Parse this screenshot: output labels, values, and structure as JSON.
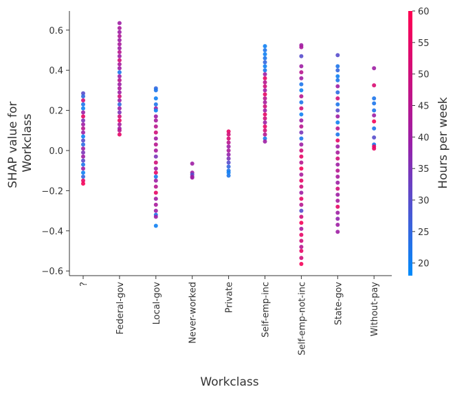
{
  "chart_data": {
    "type": "scatter",
    "xlabel": "Workclass",
    "ylabel": "SHAP value for\nWorkclass",
    "ylabel_lines": [
      "SHAP value for",
      "Workclass"
    ],
    "ylim": [
      -0.62,
      0.69
    ],
    "yticks": [
      -0.6,
      -0.4,
      -0.2,
      0.0,
      0.2,
      0.4,
      0.6
    ],
    "ytick_labels": [
      "−0.6",
      "−0.4",
      "−0.2",
      "0.0",
      "0.2",
      "0.4",
      "0.6"
    ],
    "grid": false,
    "categories": [
      "?",
      "Federal-gov",
      "Local-gov",
      "Never-worked",
      "Private",
      "Self-emp-inc",
      "Self-emp-not-inc",
      "State-gov",
      "Without-pay"
    ],
    "color_feature": {
      "label": "Hours per week",
      "range": [
        18,
        60
      ],
      "ticks": [
        20,
        25,
        30,
        35,
        40,
        45,
        50,
        55,
        60
      ],
      "colormap": [
        "#008bfb",
        "#9a1fa8",
        "#ff0051"
      ]
    },
    "points": {
      "?": [
        [
          0.285,
          30
        ],
        [
          0.27,
          25
        ],
        [
          0.25,
          50
        ],
        [
          0.23,
          22
        ],
        [
          0.21,
          20
        ],
        [
          0.19,
          40
        ],
        [
          0.17,
          55
        ],
        [
          0.15,
          35
        ],
        [
          0.13,
          40
        ],
        [
          0.11,
          45
        ],
        [
          0.09,
          40
        ],
        [
          0.07,
          20
        ],
        [
          0.05,
          30
        ],
        [
          0.03,
          24
        ],
        [
          0.01,
          40
        ],
        [
          -0.01,
          35
        ],
        [
          -0.03,
          40
        ],
        [
          -0.05,
          30
        ],
        [
          -0.07,
          22
        ],
        [
          -0.09,
          40
        ],
        [
          -0.11,
          20
        ],
        [
          -0.13,
          25
        ],
        [
          -0.15,
          55
        ],
        [
          -0.165,
          58
        ]
      ],
      "Federal-gov": [
        [
          0.635,
          40
        ],
        [
          0.61,
          42
        ],
        [
          0.59,
          40
        ],
        [
          0.57,
          43
        ],
        [
          0.55,
          40
        ],
        [
          0.53,
          42
        ],
        [
          0.51,
          40
        ],
        [
          0.49,
          45
        ],
        [
          0.47,
          40
        ],
        [
          0.45,
          50
        ],
        [
          0.43,
          42
        ],
        [
          0.41,
          40
        ],
        [
          0.39,
          22
        ],
        [
          0.37,
          40
        ],
        [
          0.35,
          45
        ],
        [
          0.33,
          40
        ],
        [
          0.31,
          42
        ],
        [
          0.29,
          40
        ],
        [
          0.27,
          50
        ],
        [
          0.25,
          40
        ],
        [
          0.23,
          25
        ],
        [
          0.21,
          40
        ],
        [
          0.19,
          35
        ],
        [
          0.17,
          50
        ],
        [
          0.15,
          55
        ],
        [
          0.13,
          42
        ],
        [
          0.11,
          40
        ],
        [
          0.1,
          45
        ],
        [
          0.08,
          55
        ]
      ],
      "Local-gov": [
        [
          0.31,
          25
        ],
        [
          0.3,
          22
        ],
        [
          0.26,
          20
        ],
        [
          0.23,
          22
        ],
        [
          0.21,
          40
        ],
        [
          0.2,
          20
        ],
        [
          0.17,
          40
        ],
        [
          0.15,
          42
        ],
        [
          0.12,
          45
        ],
        [
          0.09,
          50
        ],
        [
          0.06,
          40
        ],
        [
          0.03,
          45
        ],
        [
          0.0,
          42
        ],
        [
          -0.03,
          35
        ],
        [
          -0.06,
          50
        ],
        [
          -0.09,
          40
        ],
        [
          -0.11,
          55
        ],
        [
          -0.13,
          22
        ],
        [
          -0.15,
          40
        ],
        [
          -0.18,
          45
        ],
        [
          -0.21,
          55
        ],
        [
          -0.24,
          40
        ],
        [
          -0.27,
          42
        ],
        [
          -0.3,
          40
        ],
        [
          -0.32,
          22
        ],
        [
          -0.33,
          40
        ],
        [
          -0.375,
          20
        ]
      ],
      "Never-worked": [
        [
          -0.065,
          40
        ],
        [
          -0.11,
          40
        ],
        [
          -0.12,
          30
        ],
        [
          -0.13,
          38
        ],
        [
          -0.135,
          40
        ]
      ],
      "Private": [
        [
          0.095,
          55
        ],
        [
          0.08,
          50
        ],
        [
          0.06,
          52
        ],
        [
          0.04,
          45
        ],
        [
          0.02,
          40
        ],
        [
          0.0,
          42
        ],
        [
          -0.02,
          38
        ],
        [
          -0.04,
          35
        ],
        [
          -0.06,
          30
        ],
        [
          -0.08,
          25
        ],
        [
          -0.1,
          22
        ],
        [
          -0.11,
          20
        ],
        [
          -0.125,
          22
        ]
      ],
      "Self-emp-inc": [
        [
          0.52,
          20
        ],
        [
          0.5,
          22
        ],
        [
          0.48,
          20
        ],
        [
          0.46,
          22
        ],
        [
          0.44,
          25
        ],
        [
          0.42,
          20
        ],
        [
          0.4,
          22
        ],
        [
          0.38,
          40
        ],
        [
          0.36,
          55
        ],
        [
          0.34,
          45
        ],
        [
          0.32,
          50
        ],
        [
          0.3,
          40
        ],
        [
          0.28,
          55
        ],
        [
          0.26,
          45
        ],
        [
          0.24,
          42
        ],
        [
          0.22,
          50
        ],
        [
          0.2,
          40
        ],
        [
          0.18,
          55
        ],
        [
          0.16,
          50
        ],
        [
          0.14,
          40
        ],
        [
          0.12,
          55
        ],
        [
          0.1,
          50
        ],
        [
          0.08,
          45
        ],
        [
          0.06,
          22
        ],
        [
          0.045,
          40
        ]
      ],
      "Self-emp-not-inc": [
        [
          0.525,
          40
        ],
        [
          0.515,
          42
        ],
        [
          0.47,
          30
        ],
        [
          0.42,
          40
        ],
        [
          0.39,
          45
        ],
        [
          0.36,
          40
        ],
        [
          0.33,
          22
        ],
        [
          0.3,
          20
        ],
        [
          0.27,
          45
        ],
        [
          0.24,
          22
        ],
        [
          0.21,
          50
        ],
        [
          0.18,
          20
        ],
        [
          0.15,
          40
        ],
        [
          0.12,
          45
        ],
        [
          0.09,
          35
        ],
        [
          0.06,
          22
        ],
        [
          0.03,
          40
        ],
        [
          0.0,
          50
        ],
        [
          -0.03,
          55
        ],
        [
          -0.06,
          45
        ],
        [
          -0.09,
          58
        ],
        [
          -0.12,
          42
        ],
        [
          -0.15,
          55
        ],
        [
          -0.18,
          50
        ],
        [
          -0.21,
          40
        ],
        [
          -0.24,
          55
        ],
        [
          -0.27,
          45
        ],
        [
          -0.3,
          30
        ],
        [
          -0.33,
          50
        ],
        [
          -0.36,
          58
        ],
        [
          -0.39,
          42
        ],
        [
          -0.42,
          55
        ],
        [
          -0.45,
          50
        ],
        [
          -0.48,
          45
        ],
        [
          -0.5,
          55
        ],
        [
          -0.535,
          50
        ],
        [
          -0.565,
          58
        ]
      ],
      "State-gov": [
        [
          0.475,
          30
        ],
        [
          0.42,
          22
        ],
        [
          0.4,
          25
        ],
        [
          0.37,
          20
        ],
        [
          0.35,
          22
        ],
        [
          0.32,
          40
        ],
        [
          0.29,
          24
        ],
        [
          0.26,
          50
        ],
        [
          0.23,
          22
        ],
        [
          0.2,
          30
        ],
        [
          0.17,
          40
        ],
        [
          0.14,
          20
        ],
        [
          0.11,
          45
        ],
        [
          0.08,
          22
        ],
        [
          0.05,
          55
        ],
        [
          0.02,
          40
        ],
        [
          -0.01,
          42
        ],
        [
          -0.04,
          50
        ],
        [
          -0.07,
          40
        ],
        [
          -0.1,
          45
        ],
        [
          -0.13,
          42
        ],
        [
          -0.16,
          40
        ],
        [
          -0.19,
          50
        ],
        [
          -0.22,
          40
        ],
        [
          -0.25,
          42
        ],
        [
          -0.28,
          55
        ],
        [
          -0.31,
          40
        ],
        [
          -0.34,
          38
        ],
        [
          -0.37,
          40
        ],
        [
          -0.405,
          40
        ]
      ],
      "Without-pay": [
        [
          0.41,
          40
        ],
        [
          0.325,
          52
        ],
        [
          0.26,
          22
        ],
        [
          0.235,
          22
        ],
        [
          0.2,
          22
        ],
        [
          0.175,
          40
        ],
        [
          0.145,
          58
        ],
        [
          0.11,
          22
        ],
        [
          0.065,
          30
        ],
        [
          0.03,
          22
        ],
        [
          0.02,
          55
        ],
        [
          0.01,
          55
        ]
      ]
    }
  }
}
